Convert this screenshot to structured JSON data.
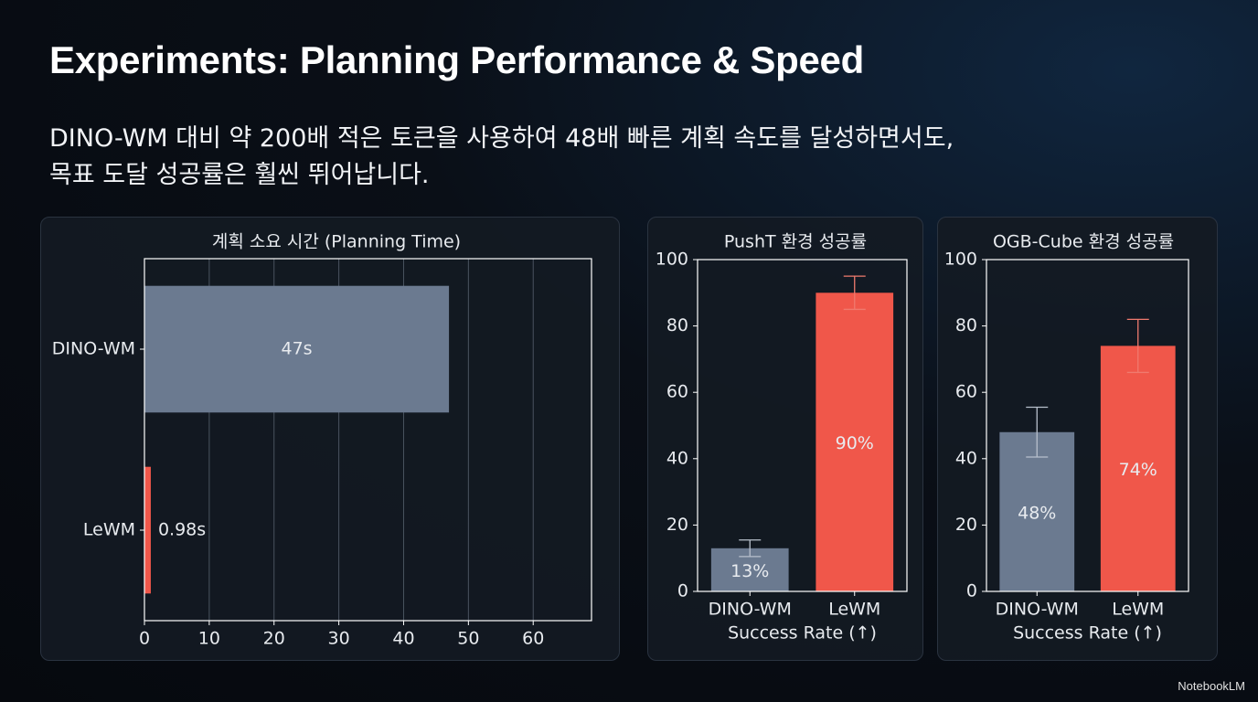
{
  "title": "Experiments: Planning Performance & Speed",
  "subtitle": [
    "DINO-WM 대비 약 200배 적은 토큰을 사용하여 48배 빠른 계획 속도를 달성하면서도,",
    "목표 도달 성공률은 훨씬 뛰어납니다."
  ],
  "brand": "NotebookLM",
  "chart_data": [
    {
      "type": "bar",
      "orientation": "horizontal",
      "title": "계획 소요 시간 (Planning Time)",
      "categories": [
        "DINO-WM",
        "LeWM"
      ],
      "values": [
        47,
        0.98
      ],
      "value_labels": [
        "47s",
        "0.98s"
      ],
      "colors": [
        "#6b7a90",
        "#f0574a"
      ],
      "xlim": [
        0,
        69
      ],
      "xticks": [
        0,
        10,
        20,
        30,
        40,
        50,
        60
      ],
      "grid": true
    },
    {
      "type": "bar",
      "title": "PushT 환경 성공률",
      "xlabel": "Success Rate (↑)",
      "categories": [
        "DINO-WM",
        "LeWM"
      ],
      "values": [
        13,
        90
      ],
      "value_labels": [
        "13%",
        "90%"
      ],
      "error": [
        2.5,
        5
      ],
      "colors": [
        "#6b7a90",
        "#f0574a"
      ],
      "ylim": [
        0,
        100
      ],
      "yticks": [
        0,
        20,
        40,
        60,
        80,
        100
      ],
      "grid": false
    },
    {
      "type": "bar",
      "title": "OGB-Cube 환경 성공률",
      "xlabel": "Success Rate (↑)",
      "categories": [
        "DINO-WM",
        "LeWM"
      ],
      "values": [
        48,
        74
      ],
      "value_labels": [
        "48%",
        "74%"
      ],
      "error": [
        7.5,
        8
      ],
      "colors": [
        "#6b7a90",
        "#f0574a"
      ],
      "ylim": [
        0,
        100
      ],
      "yticks": [
        0,
        20,
        40,
        60,
        80,
        100
      ],
      "grid": false
    }
  ]
}
